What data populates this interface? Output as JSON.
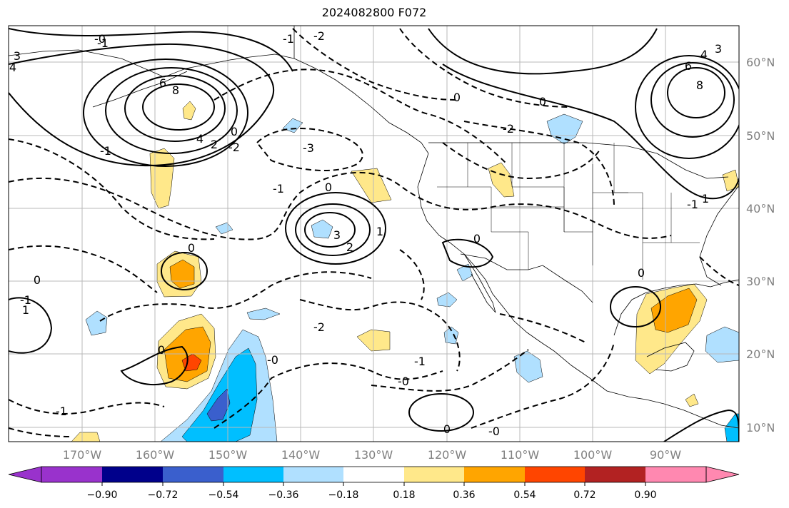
{
  "title": "2024082800 F072",
  "longitude_labels": [
    "170°W",
    "160°W",
    "150°W",
    "140°W",
    "130°W",
    "120°W",
    "110°W",
    "100°W",
    "90°W"
  ],
  "latitude_labels": [
    "10°N",
    "20°N",
    "30°N",
    "40°N",
    "50°N",
    "60°N"
  ],
  "colorbar": {
    "tick_labels": [
      "−0.90",
      "−0.72",
      "−0.54",
      "−0.36",
      "−0.18",
      "0.18",
      "0.36",
      "0.54",
      "0.72",
      "0.90"
    ],
    "colors": [
      "#9932cc",
      "#00008b",
      "#3a5fcd",
      "#00bfff",
      "#b0e0ff",
      "#ffffff",
      "#ffe88a",
      "#ffa500",
      "#ff4500",
      "#b22222",
      "#ff88b0"
    ]
  },
  "contour_labels": [
    {
      "text": "-2"
    },
    {
      "text": "-1"
    },
    {
      "text": "-1"
    },
    {
      "text": "-3"
    },
    {
      "text": "-2"
    },
    {
      "text": "-1"
    },
    {
      "text": "-2"
    },
    {
      "text": "-1"
    },
    {
      "text": "-1"
    },
    {
      "text": "-2"
    },
    {
      "text": "-1"
    },
    {
      "text": "-1"
    },
    {
      "text": "-0"
    },
    {
      "text": "-0"
    },
    {
      "text": "-0"
    },
    {
      "text": "-0"
    },
    {
      "text": "-1"
    },
    {
      "text": "0"
    },
    {
      "text": "0"
    },
    {
      "text": "0"
    },
    {
      "text": "0"
    },
    {
      "text": "0"
    },
    {
      "text": "0"
    },
    {
      "text": "0"
    },
    {
      "text": "0"
    },
    {
      "text": "0"
    },
    {
      "text": "1"
    },
    {
      "text": "1"
    },
    {
      "text": "2"
    },
    {
      "text": "3"
    },
    {
      "text": "4"
    },
    {
      "text": "6"
    },
    {
      "text": "8"
    },
    {
      "text": "4"
    },
    {
      "text": "6"
    },
    {
      "text": "8"
    },
    {
      "text": "4"
    },
    {
      "text": "3"
    },
    {
      "text": "3"
    },
    {
      "text": "2"
    },
    {
      "text": "0"
    },
    {
      "text": "1"
    }
  ]
}
